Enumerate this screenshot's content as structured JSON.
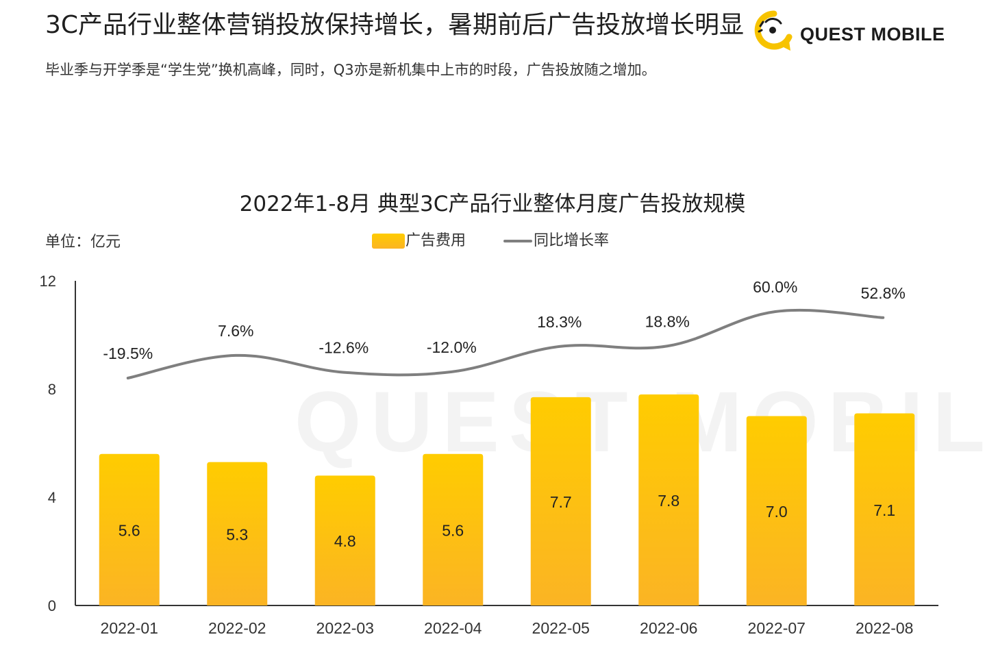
{
  "header": {
    "headline": "3C产品行业整体营销投放保持增长，暑期前后广告投放增长明显",
    "subline": "毕业季与开学季是“学生党”换机高峰，同时，Q3亦是新机集中上市的时段，广告投放随之增加。"
  },
  "brand": {
    "logo_text": "QUEST MOBILE",
    "watermark_text": "QUEST MOBILE"
  },
  "colors": {
    "bar_top": "#FFCC00",
    "bar_bottom": "#FBB424",
    "line": "#7F7F7F",
    "logo_yellow": "#F7C300",
    "axis": "#333333"
  },
  "chart_data": {
    "type": "bar",
    "title": "2022年1-8月 典型3C产品行业整体月度广告投放规模",
    "unit_label": "单位：亿元",
    "categories": [
      "2022-01",
      "2022-02",
      "2022-03",
      "2022-04",
      "2022-05",
      "2022-06",
      "2022-07",
      "2022-08"
    ],
    "series": [
      {
        "name": "广告费用",
        "kind": "bar",
        "values": [
          5.6,
          5.3,
          4.8,
          5.6,
          7.7,
          7.8,
          7.0,
          7.1
        ],
        "labels": [
          "5.6",
          "5.3",
          "4.8",
          "5.6",
          "7.7",
          "7.8",
          "7.0",
          "7.1"
        ]
      },
      {
        "name": "同比增长率",
        "kind": "line",
        "unit": "%",
        "values": [
          -19.5,
          7.6,
          -12.6,
          -12.0,
          18.3,
          18.8,
          60.0,
          52.8
        ],
        "labels": [
          "-19.5%",
          "7.6%",
          "-12.6%",
          "-12.0%",
          "18.3%",
          "18.8%",
          "60.0%",
          "52.8%"
        ]
      }
    ],
    "y_axis": {
      "min": 0,
      "max": 12,
      "ticks": [
        0,
        4,
        8,
        12
      ],
      "tick_labels": [
        "0",
        "4",
        "8",
        "12"
      ]
    },
    "y2_axis": {
      "min": -25,
      "max": 62,
      "visible": false
    },
    "legend_position": "top-center",
    "grid": false
  }
}
